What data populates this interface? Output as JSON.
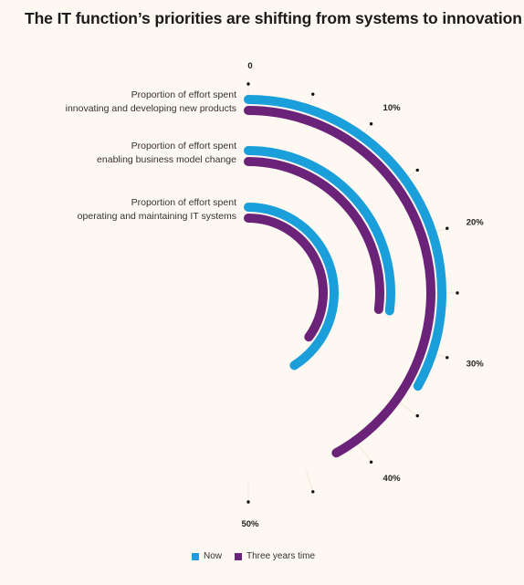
{
  "title": "The IT function’s priorities are shifting from systems to innovation",
  "colors": {
    "now": "#1a9fdb",
    "three_years": "#6a2379"
  },
  "chart_data": {
    "type": "radial-bar",
    "title": "The IT function’s priorities are shifting from systems to innovation",
    "categories": [
      [
        "Proportion of effort spent",
        "innovating and developing new products"
      ],
      [
        "Proportion of effort spent",
        "enabling business model change"
      ],
      [
        "Proportion of effort spent",
        "operating and maintaining IT systems"
      ]
    ],
    "series": [
      {
        "name": "Now",
        "values": [
          33,
          27,
          41
        ]
      },
      {
        "name": "Three years time",
        "values": [
          42,
          27,
          35
        ]
      }
    ],
    "axis": {
      "min": 0,
      "max": 50,
      "unit": "%"
    },
    "tick_labels": [
      "0",
      "10%",
      "20%",
      "30%",
      "40%",
      "50%"
    ]
  },
  "legend": [
    {
      "label": "Now",
      "color": "#1a9fdb"
    },
    {
      "label": "Three years time",
      "color": "#6a2379"
    }
  ]
}
